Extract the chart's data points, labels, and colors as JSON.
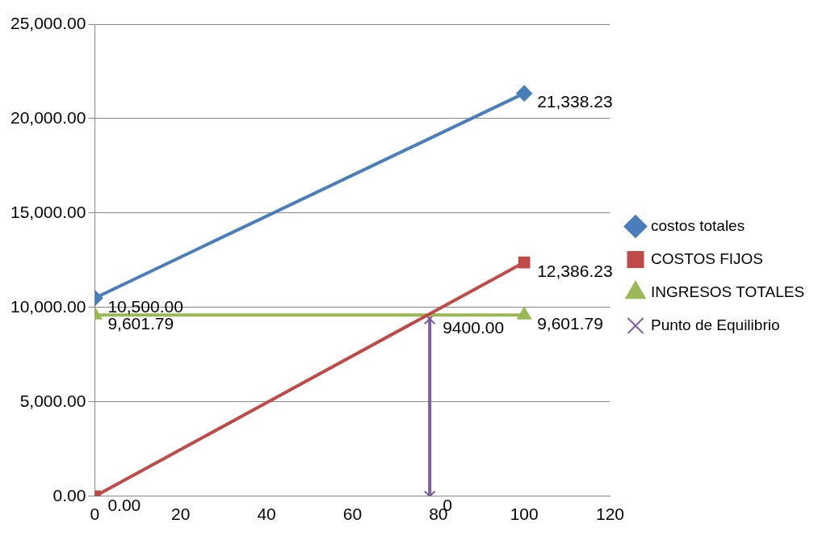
{
  "chart_data": {
    "type": "line",
    "x": [
      0,
      100
    ],
    "xlim": [
      0,
      120
    ],
    "xticks": [
      0,
      20,
      40,
      60,
      80,
      100,
      120
    ],
    "ylim": [
      0,
      25000
    ],
    "yticks": [
      {
        "value": 0,
        "label": "0.00"
      },
      {
        "value": 5000,
        "label": "5,000.00"
      },
      {
        "value": 10000,
        "label": "10,000.00"
      },
      {
        "value": 15000,
        "label": "15,000.00"
      },
      {
        "value": 20000,
        "label": "20,000.00"
      },
      {
        "value": 25000,
        "label": "25,000.00"
      }
    ],
    "grid": "y",
    "legend": "right",
    "line_style": "solid",
    "series": [
      {
        "name": "costos totales",
        "color": "#4a7ebb",
        "marker": "diamond",
        "values": [
          10500,
          21338.23
        ],
        "value_labels": [
          "10,500.00",
          "21,338.23"
        ]
      },
      {
        "name": "COSTOS FIJOS",
        "color": "#be4b48",
        "marker": "square",
        "values": [
          0,
          12386.23
        ],
        "value_labels": [
          "0.00",
          "12,386.23"
        ]
      },
      {
        "name": "INGRESOS TOTALES",
        "color": "#98b954",
        "marker": "triangle",
        "values": [
          9601.79,
          9601.79
        ],
        "value_labels": [
          "9,601.79",
          "9,601.79"
        ]
      },
      {
        "name": "Punto de Equilibrio",
        "color": "#7d5fa0",
        "marker": "cross",
        "x": [
          78,
          78
        ],
        "values": [
          9400,
          0
        ],
        "value_labels": [
          "9400.00",
          "0"
        ]
      }
    ]
  }
}
